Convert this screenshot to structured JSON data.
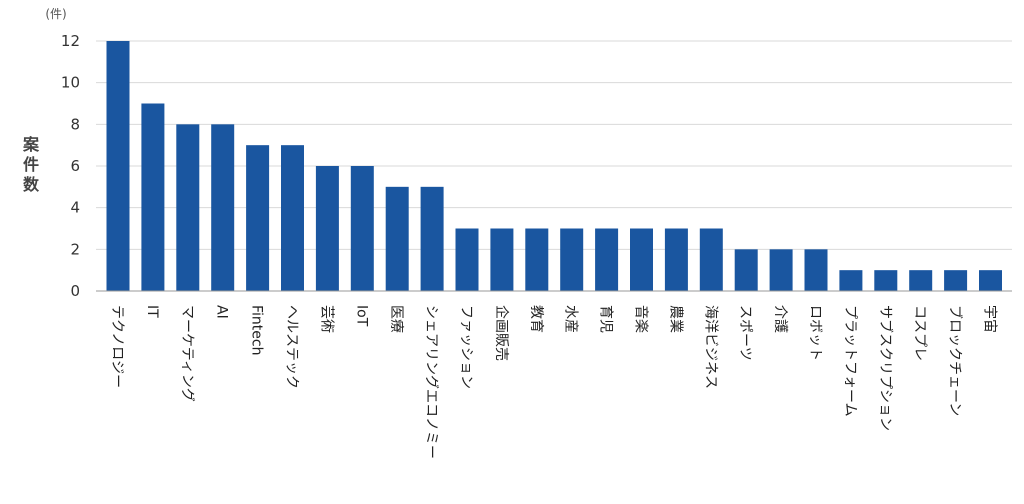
{
  "chart_data": {
    "type": "bar",
    "unit": "(件)",
    "ylabel": "案件数",
    "ylim": [
      0,
      12
    ],
    "yticks": [
      0,
      2,
      4,
      6,
      8,
      10,
      12
    ],
    "grid": true,
    "bar_color": "#1a56a0",
    "grid_color": "#d9d9d9",
    "categories": [
      "テクノロジー",
      "IT",
      "マーケティング",
      "AI",
      "Fintech",
      "ヘルステック",
      "芸術",
      "IoT",
      "医療",
      "シェアリングエコノミー",
      "ファッション",
      "企画販売",
      "教育",
      "水産",
      "育児",
      "音楽",
      "農業",
      "海洋ビジネス",
      "スポーツ",
      "介護",
      "ロボット",
      "プラットフォーム",
      "サブスクリプション",
      "コスプレ",
      "ブロックチェーン",
      "宇宙"
    ],
    "values": [
      12,
      9,
      8,
      8,
      7,
      7,
      6,
      6,
      5,
      5,
      3,
      3,
      3,
      3,
      3,
      3,
      3,
      3,
      2,
      2,
      2,
      1,
      1,
      1,
      1,
      1
    ]
  }
}
